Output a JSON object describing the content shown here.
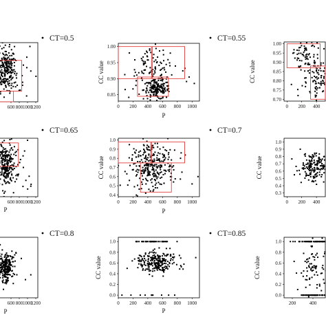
{
  "chart_data": [
    {
      "id": "p1",
      "type": "scatter",
      "legend": "CT=0.5",
      "xticks": [
        "600",
        "800",
        "1000",
        "1200"
      ],
      "yticks": [],
      "xlabel": "",
      "ylabel": "",
      "xlim": [
        250,
        1250
      ],
      "ylim": [
        0,
        1
      ],
      "clusters": [
        {
          "cx": 470,
          "cy": 0.55,
          "sx": 120,
          "sy": 0.18,
          "n": 220
        },
        {
          "cx": 650,
          "cy": 0.5,
          "sx": 200,
          "sy": 0.25,
          "n": 40
        }
      ],
      "outliers": [
        [
          1080,
          0.52
        ],
        [
          880,
          0.33
        ],
        [
          900,
          0.62
        ]
      ],
      "boxes": [
        [
          250,
          0.0,
          660,
          0.18
        ],
        [
          300,
          0.18,
          860,
          0.7
        ]
      ]
    },
    {
      "id": "p2",
      "type": "scatter",
      "legend": "CT=0.55",
      "xticks": [
        "0",
        "200",
        "400",
        "600",
        "800",
        "1000"
      ],
      "yticks": [
        "0.85",
        "0.90",
        "0.95",
        "1.00"
      ],
      "xlabel": "P",
      "ylabel": "CC value",
      "xlim": [
        0,
        1100
      ],
      "ylim": [
        0.83,
        1.01
      ],
      "clusters": [
        {
          "cx": 520,
          "cy": 0.865,
          "sx": 90,
          "sy": 0.015,
          "n": 160
        },
        {
          "cx": 450,
          "cy": 0.93,
          "sx": 170,
          "sy": 0.035,
          "n": 110
        }
      ],
      "outliers": [
        [
          960,
          0.905
        ],
        [
          1030,
          0.885
        ],
        [
          150,
          0.98
        ]
      ],
      "boxes": [
        [
          0,
          0.9,
          450,
          1.0
        ],
        [
          460,
          0.9,
          900,
          1.0
        ],
        [
          260,
          0.845,
          680,
          0.905
        ]
      ]
    },
    {
      "id": "p3",
      "type": "scatter",
      "legend": "",
      "xticks": [
        "0",
        "200",
        "400"
      ],
      "yticks": [
        "0.70",
        "0.75",
        "0.80",
        "0.85",
        "0.90",
        "0.95",
        "1.00"
      ],
      "xlabel": "",
      "ylabel": "CC value",
      "xlim": [
        -40,
        520
      ],
      "ylim": [
        0.69,
        1.01
      ],
      "clusters": [
        {
          "cx": 380,
          "cy": 0.84,
          "sx": 110,
          "sy": 0.07,
          "n": 120
        },
        {
          "cx": 220,
          "cy": 0.95,
          "sx": 70,
          "sy": 0.03,
          "n": 40
        }
      ],
      "outliers": [
        [
          150,
          0.72
        ],
        [
          60,
          0.78
        ]
      ],
      "boxes": [
        [
          0,
          0.87,
          450,
          1.0
        ],
        [
          320,
          0.7,
          520,
          0.88
        ]
      ]
    },
    {
      "id": "p4",
      "type": "scatter",
      "legend": "CT=0.65",
      "xticks": [
        "600",
        "800",
        "1000",
        "1200"
      ],
      "yticks": [],
      "xlabel": "P",
      "ylabel": "",
      "xlim": [
        250,
        1250
      ],
      "ylim": [
        0,
        1
      ],
      "clusters": [
        {
          "cx": 470,
          "cy": 0.55,
          "sx": 110,
          "sy": 0.2,
          "n": 230
        },
        {
          "cx": 700,
          "cy": 0.45,
          "sx": 180,
          "sy": 0.25,
          "n": 30
        }
      ],
      "outliers": [
        [
          1080,
          0.18
        ],
        [
          1040,
          0.35
        ],
        [
          900,
          0.5
        ]
      ],
      "boxes": [
        [
          250,
          0.52,
          780,
          0.92
        ]
      ]
    },
    {
      "id": "p5",
      "type": "scatter",
      "legend": "CT=0.7",
      "xticks": [
        "0",
        "200",
        "400",
        "600",
        "800",
        "1000"
      ],
      "yticks": [
        "0.4",
        "0.5",
        "0.6",
        "0.7",
        "0.8",
        "0.9",
        "1.0"
      ],
      "xlabel": "P",
      "ylabel": "CC value",
      "xlim": [
        0,
        1100
      ],
      "ylim": [
        0.38,
        1.02
      ],
      "clusters": [
        {
          "cx": 450,
          "cy": 0.68,
          "sx": 150,
          "sy": 0.1,
          "n": 240
        },
        {
          "cx": 500,
          "cy": 0.88,
          "sx": 150,
          "sy": 0.06,
          "n": 50
        }
      ],
      "outliers": [
        [
          1080,
          0.6
        ],
        [
          1000,
          0.52
        ],
        [
          150,
          0.95
        ]
      ],
      "boxes": [
        [
          0,
          0.75,
          440,
          0.98
        ],
        [
          450,
          0.75,
          900,
          0.98
        ],
        [
          300,
          0.43,
          720,
          0.75
        ]
      ]
    },
    {
      "id": "p6",
      "type": "scatter",
      "legend": "",
      "xticks": [
        "0",
        "200",
        "400"
      ],
      "yticks": [
        "0.3",
        "0.4",
        "0.5",
        "0.6",
        "0.7",
        "0.8",
        "0.9",
        "1.0"
      ],
      "xlabel": "",
      "ylabel": "CC value",
      "xlim": [
        -40,
        520
      ],
      "ylim": [
        0.25,
        1.05
      ],
      "clusters": [
        {
          "cx": 380,
          "cy": 0.66,
          "sx": 100,
          "sy": 0.09,
          "n": 180
        }
      ],
      "outliers": [
        [
          180,
          0.9
        ],
        [
          100,
          0.55
        ]
      ],
      "boxes": []
    },
    {
      "id": "p7",
      "type": "scatter",
      "legend": "CT=0.8",
      "xticks": [
        "600",
        "800",
        "1000",
        "1200"
      ],
      "yticks": [],
      "xlabel": "P",
      "ylabel": "",
      "xlim": [
        250,
        1250
      ],
      "ylim": [
        0,
        1
      ],
      "clusters": [
        {
          "cx": 470,
          "cy": 0.5,
          "sx": 100,
          "sy": 0.12,
          "n": 240
        }
      ],
      "outliers": [
        [
          1080,
          0.38
        ],
        [
          850,
          0.65
        ],
        [
          950,
          0.3
        ]
      ],
      "boxes": []
    },
    {
      "id": "p8",
      "type": "scatter",
      "legend": "CT=0.85",
      "xticks": [
        "0",
        "200",
        "400",
        "600",
        "800",
        "1000"
      ],
      "yticks": [
        "0.0",
        "0.2",
        "0.4",
        "0.6",
        "0.8",
        "1.0"
      ],
      "xlabel": "P",
      "ylabel": "CC value",
      "xlim": [
        0,
        1100
      ],
      "ylim": [
        -0.05,
        1.08
      ],
      "clusters": [
        {
          "cx": 520,
          "cy": 0.62,
          "sx": 130,
          "sy": 0.1,
          "n": 240
        },
        {
          "cx": 450,
          "cy": 1.0,
          "sx": 140,
          "sy": 0.0,
          "n": 45
        },
        {
          "cx": 420,
          "cy": 0.0,
          "sx": 140,
          "sy": 0.0,
          "n": 10
        }
      ],
      "outliers": [
        [
          1050,
          0.7
        ],
        [
          120,
          0.5
        ]
      ],
      "boxes": []
    },
    {
      "id": "p9",
      "type": "scatter",
      "legend": "",
      "xticks": [
        "200",
        "400"
      ],
      "yticks": [
        "0.0",
        "0.2",
        "0.4",
        "0.6",
        "0.8",
        "1.0"
      ],
      "xlabel": "",
      "ylabel": "CC value",
      "xlim": [
        120,
        520
      ],
      "ylim": [
        -0.05,
        1.08
      ],
      "clusters": [
        {
          "cx": 420,
          "cy": 1.0,
          "sx": 90,
          "sy": 0.0,
          "n": 60
        },
        {
          "cx": 420,
          "cy": 0.0,
          "sx": 90,
          "sy": 0.0,
          "n": 50
        },
        {
          "cx": 420,
          "cy": 0.5,
          "sx": 80,
          "sy": 0.2,
          "n": 90
        }
      ],
      "outliers": [],
      "boxes": []
    }
  ]
}
